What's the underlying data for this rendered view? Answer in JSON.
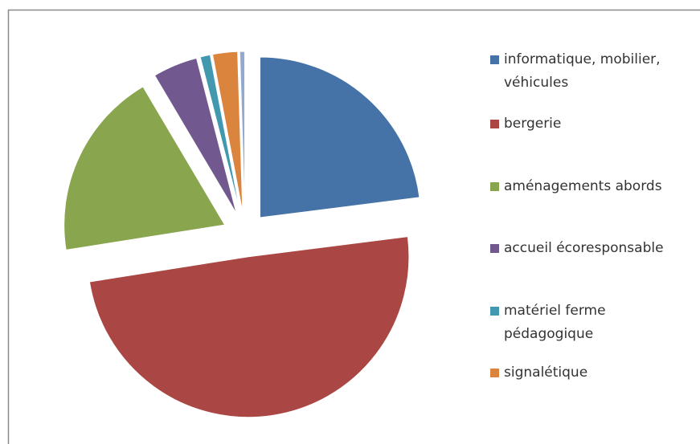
{
  "chart_data": {
    "type": "pie",
    "categories": [
      "informatique, mobilier, véhicules",
      "bergerie",
      "aménagements abords",
      "accueil écoresponsable",
      "matériel ferme pédagogique",
      "signalétique",
      null
    ],
    "values": [
      23,
      49.5,
      19,
      4.5,
      1,
      2.5,
      0.5
    ],
    "colors": [
      "#4572a7",
      "#aa4643",
      "#89a54e",
      "#71588f",
      "#4198af",
      "#db843d",
      "#93a9cf"
    ],
    "legend": "right"
  }
}
